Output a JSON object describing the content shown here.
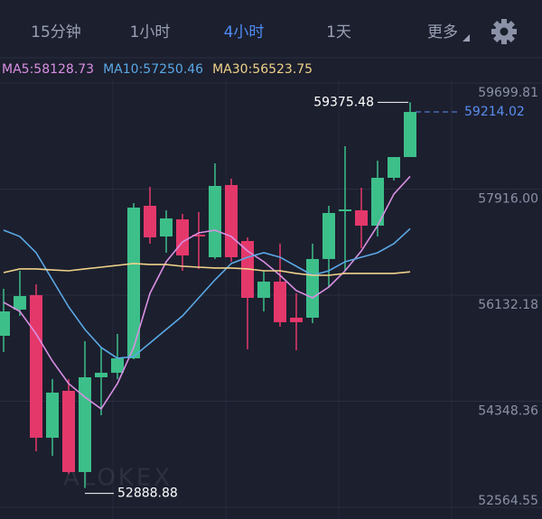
{
  "tabs": [
    "15分钟",
    "1小时",
    "4小时",
    "1天",
    "更多"
  ],
  "active_tab": 2,
  "chart_data": {
    "type": "candlestick",
    "open": [
      55449,
      55889,
      56132,
      53734,
      54523,
      53157,
      54751,
      54827,
      55070,
      57635,
      57119,
      57407,
      57149,
      56770,
      57984,
      57043,
      56087,
      56360,
      55753,
      55753,
      56740,
      57544,
      57559,
      57301,
      58106,
      58455
    ],
    "high": [
      56239,
      56542,
      56314,
      54721,
      54721,
      55358,
      55252,
      55480,
      57681,
      57954,
      57559,
      57499,
      57529,
      58349,
      58091,
      57104,
      56542,
      56998,
      56163,
      56998,
      57635,
      58637,
      57939,
      58394,
      58455,
      59375.48
    ],
    "low": [
      55176,
      55783,
      53506,
      53430,
      53127,
      52888.88,
      54113,
      54721,
      55055,
      56998,
      56846,
      56542,
      56573,
      56740,
      56694,
      55222,
      55859,
      55601,
      55206,
      55662,
      56269,
      56542,
      56922,
      57119,
      58060,
      58455
    ],
    "close": [
      55859,
      56117,
      53734,
      54493,
      53157,
      54751,
      54827,
      55070,
      57605,
      57104,
      57423,
      56800,
      57119,
      57969,
      56770,
      56087,
      56360,
      55677,
      55677,
      56740,
      57514,
      57574,
      57301,
      58106,
      58455,
      59214.02
    ],
    "up_color": "#3dbf8a",
    "down_color": "#e4386b",
    "series": [
      {
        "name": "MA5:58128.73",
        "color": "#d98fe3",
        "values": [
          56011,
          55859,
          55480,
          55024,
          54645,
          54417,
          54220,
          54645,
          55252,
          56163,
          56694,
          57028,
          57180,
          57225,
          57119,
          56876,
          56694,
          56466,
          56208,
          56087,
          56269,
          56542,
          56876,
          57301,
          57832,
          58129
        ]
      },
      {
        "name": "MA10:57250.46",
        "color": "#5aa9e6",
        "values": [
          57225,
          57119,
          56846,
          56390,
          55935,
          55555,
          55252,
          55070,
          55100,
          55328,
          55555,
          55783,
          56087,
          56390,
          56664,
          56770,
          56846,
          56770,
          56618,
          56466,
          56542,
          56694,
          56770,
          56846,
          56998,
          57250
        ]
      },
      {
        "name": "MA30:56523.75",
        "color": "#f0d28a",
        "values": [
          56512,
          56573,
          56573,
          56557,
          56542,
          56573,
          56603,
          56633,
          56664,
          56648,
          56648,
          56618,
          56603,
          56588,
          56588,
          56573,
          56542,
          56542,
          56497,
          56466,
          56466,
          56497,
          56497,
          56497,
          56497,
          56524
        ]
      }
    ],
    "ylim": [
      52564.55,
      59699.81
    ],
    "yticks": [
      59699.81,
      {
        "value": 57916,
        "label": "57916.00"
      },
      56132.18,
      54348.36,
      52564.55
    ],
    "grid": true,
    "markers": {
      "high": 59375.48,
      "low": 52888.88,
      "last": 59214.02
    },
    "watermark": "ALOKEX"
  }
}
